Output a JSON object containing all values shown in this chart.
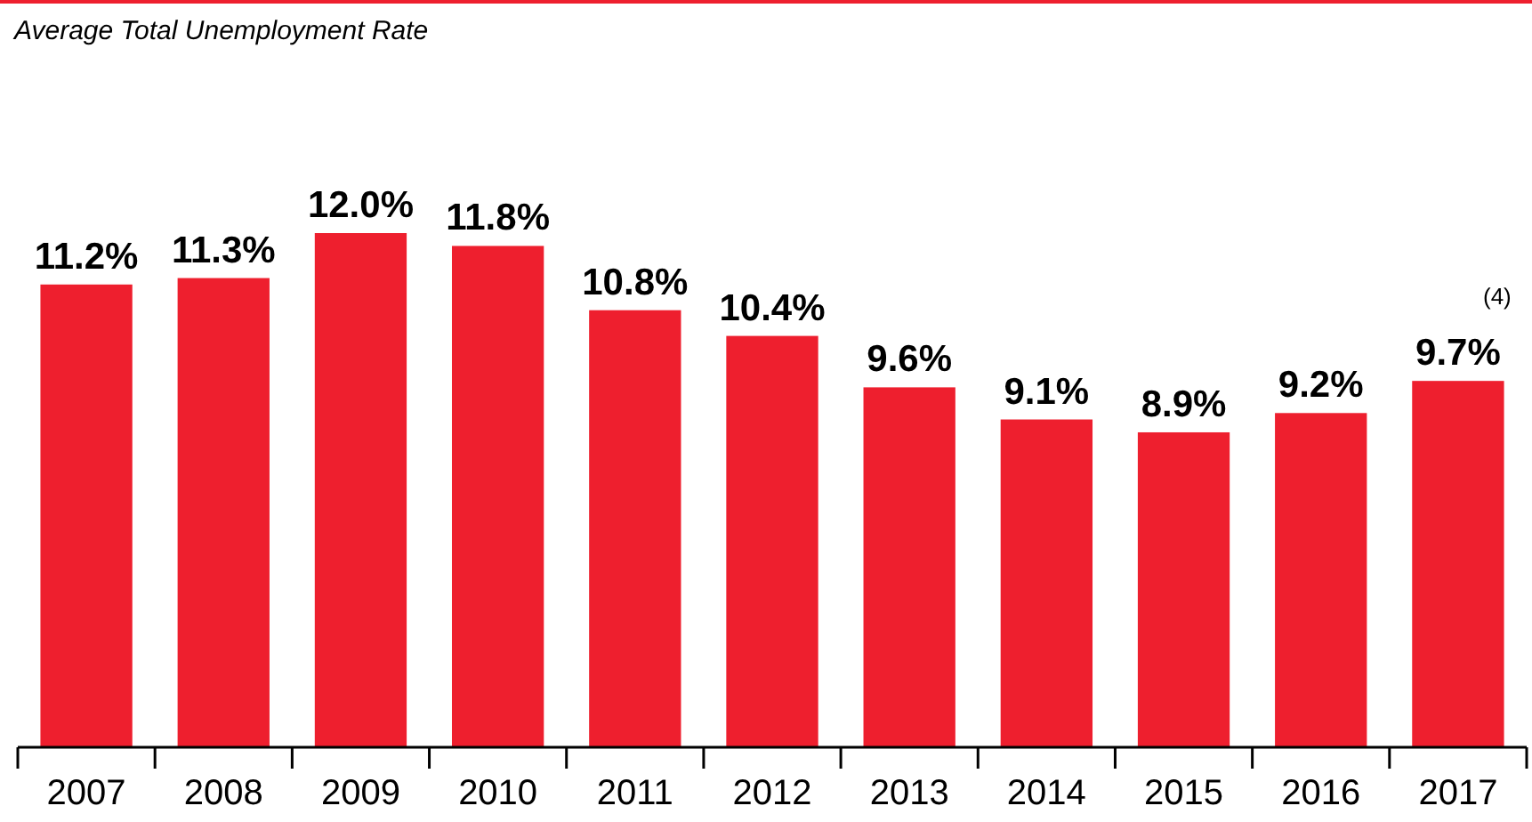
{
  "chart_data": {
    "type": "bar",
    "title": "Average Total Unemployment Rate",
    "categories": [
      "2007",
      "2008",
      "2009",
      "2010",
      "2011",
      "2012",
      "2013",
      "2014",
      "2015",
      "2016",
      "2017"
    ],
    "values": [
      11.2,
      11.3,
      12.0,
      11.8,
      10.8,
      10.4,
      9.6,
      9.1,
      8.9,
      9.2,
      9.7
    ],
    "value_labels": [
      "11.2%",
      "11.3%",
      "12.0%",
      "11.8%",
      "10.8%",
      "10.4%",
      "9.6%",
      "9.1%",
      "8.9%",
      "9.2%",
      "9.7%"
    ],
    "color": "#ee1f2e",
    "ylim": [
      4,
      12
    ],
    "tick_labels": "x",
    "annotations": [
      "(4)"
    ]
  }
}
